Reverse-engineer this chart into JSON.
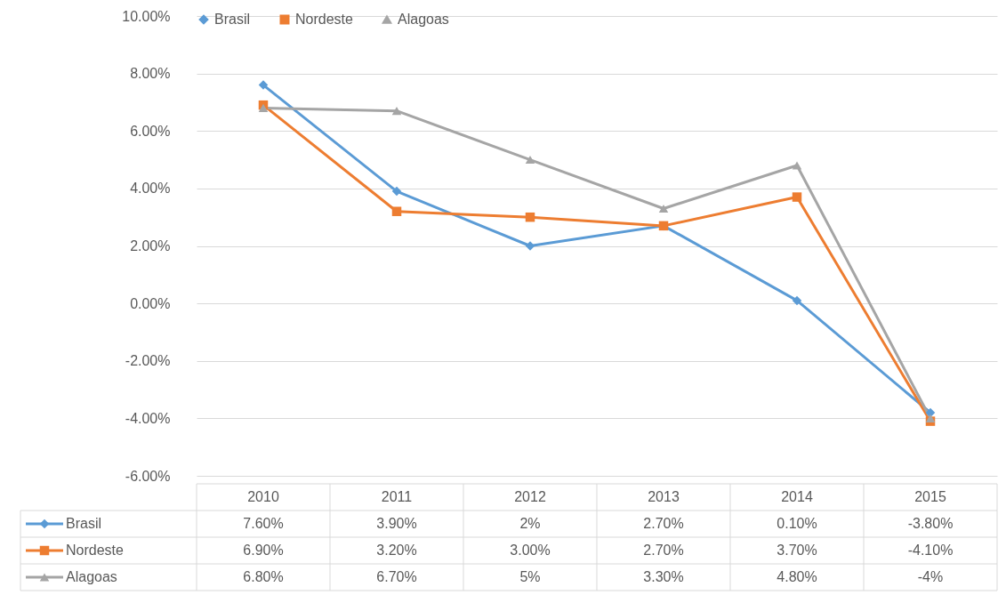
{
  "chart_data": {
    "type": "line",
    "categories": [
      "2010",
      "2011",
      "2012",
      "2013",
      "2014",
      "2015"
    ],
    "ylim": [
      -6,
      10
    ],
    "yticks": [
      {
        "value": -6,
        "label": "-6.00%"
      },
      {
        "value": -4,
        "label": "-4.00%"
      },
      {
        "value": -2,
        "label": "-2.00%"
      },
      {
        "value": 0,
        "label": "0.00%"
      },
      {
        "value": 2,
        "label": "2.00%"
      },
      {
        "value": 4,
        "label": "4.00%"
      },
      {
        "value": 6,
        "label": "6.00%"
      },
      {
        "value": 8,
        "label": "8.00%"
      },
      {
        "value": 10,
        "label": "10.00%"
      }
    ],
    "grid": "y",
    "legend": "top",
    "series": [
      {
        "name": "Brasil",
        "color": "#5b9bd5",
        "marker": "diamond",
        "values": [
          7.6,
          3.9,
          2,
          2.7,
          0.1,
          -3.8
        ],
        "value_labels": [
          "7.60%",
          "3.90%",
          "2%",
          "2.70%",
          "0.10%",
          "-3.80%"
        ]
      },
      {
        "name": "Nordeste",
        "color": "#ed7d31",
        "marker": "square",
        "values": [
          6.9,
          3.2,
          3.0,
          2.7,
          3.7,
          -4.1
        ],
        "value_labels": [
          "6.90%",
          "3.20%",
          "3.00%",
          "2.70%",
          "3.70%",
          "-4.10%"
        ]
      },
      {
        "name": "Alagoas",
        "color": "#a5a5a5",
        "marker": "triangle",
        "values": [
          6.8,
          6.7,
          5,
          3.3,
          4.8,
          -4
        ],
        "value_labels": [
          "6.80%",
          "6.70%",
          "5%",
          "3.30%",
          "4.80%",
          "-4%"
        ]
      }
    ]
  }
}
